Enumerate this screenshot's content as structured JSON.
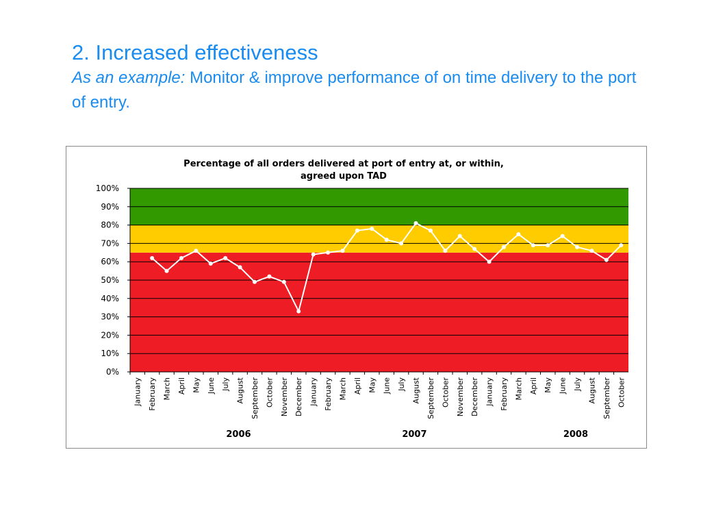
{
  "heading": "2. Increased effectiveness",
  "subtitle_lead": "As an example:",
  "subtitle": "Monitor & improve performance of on time delivery to the port of entry.",
  "chart_data": {
    "type": "line",
    "title": [
      "Percentage of all orders delivered at port of entry at, or within,",
      "agreed upon TAD"
    ],
    "categories": [
      "January",
      "February",
      "March",
      "April",
      "May",
      "June",
      "July",
      "August",
      "September",
      "October",
      "November",
      "December",
      "January",
      "February",
      "March",
      "April",
      "May",
      "June",
      "July",
      "August",
      "September",
      "October",
      "November",
      "December",
      "January",
      "February",
      "March",
      "April",
      "May",
      "June",
      "July",
      "August",
      "September",
      "October"
    ],
    "year_labels": [
      "2006",
      "2007",
      "2008"
    ],
    "values": [
      null,
      62,
      55,
      62,
      66,
      59,
      62,
      57,
      49,
      52,
      49,
      33,
      64,
      65,
      66,
      77,
      78,
      72,
      70,
      81,
      77,
      66,
      74,
      67,
      60,
      68,
      75,
      69,
      69,
      74,
      68,
      66,
      61,
      69
    ],
    "color": "#ffffff",
    "bands": [
      {
        "from": 0,
        "to": 65,
        "color": "#ee1c24"
      },
      {
        "from": 65,
        "to": 80,
        "color": "#ffcc00"
      },
      {
        "from": 80,
        "to": 100,
        "color": "#339900"
      }
    ],
    "ylim": [
      0,
      100
    ],
    "yticks": [
      {
        "value": 0,
        "label": "0%"
      },
      {
        "value": 10,
        "label": "10%"
      },
      {
        "value": 20,
        "label": "20%"
      },
      {
        "value": 30,
        "label": "30%"
      },
      {
        "value": 40,
        "label": "40%"
      },
      {
        "value": 50,
        "label": "50%"
      },
      {
        "value": 60,
        "label": "60%"
      },
      {
        "value": 70,
        "label": "70%"
      },
      {
        "value": 80,
        "label": "80%"
      },
      {
        "value": 90,
        "label": "90%"
      },
      {
        "value": 100,
        "label": "100%"
      }
    ],
    "grid": true
  }
}
